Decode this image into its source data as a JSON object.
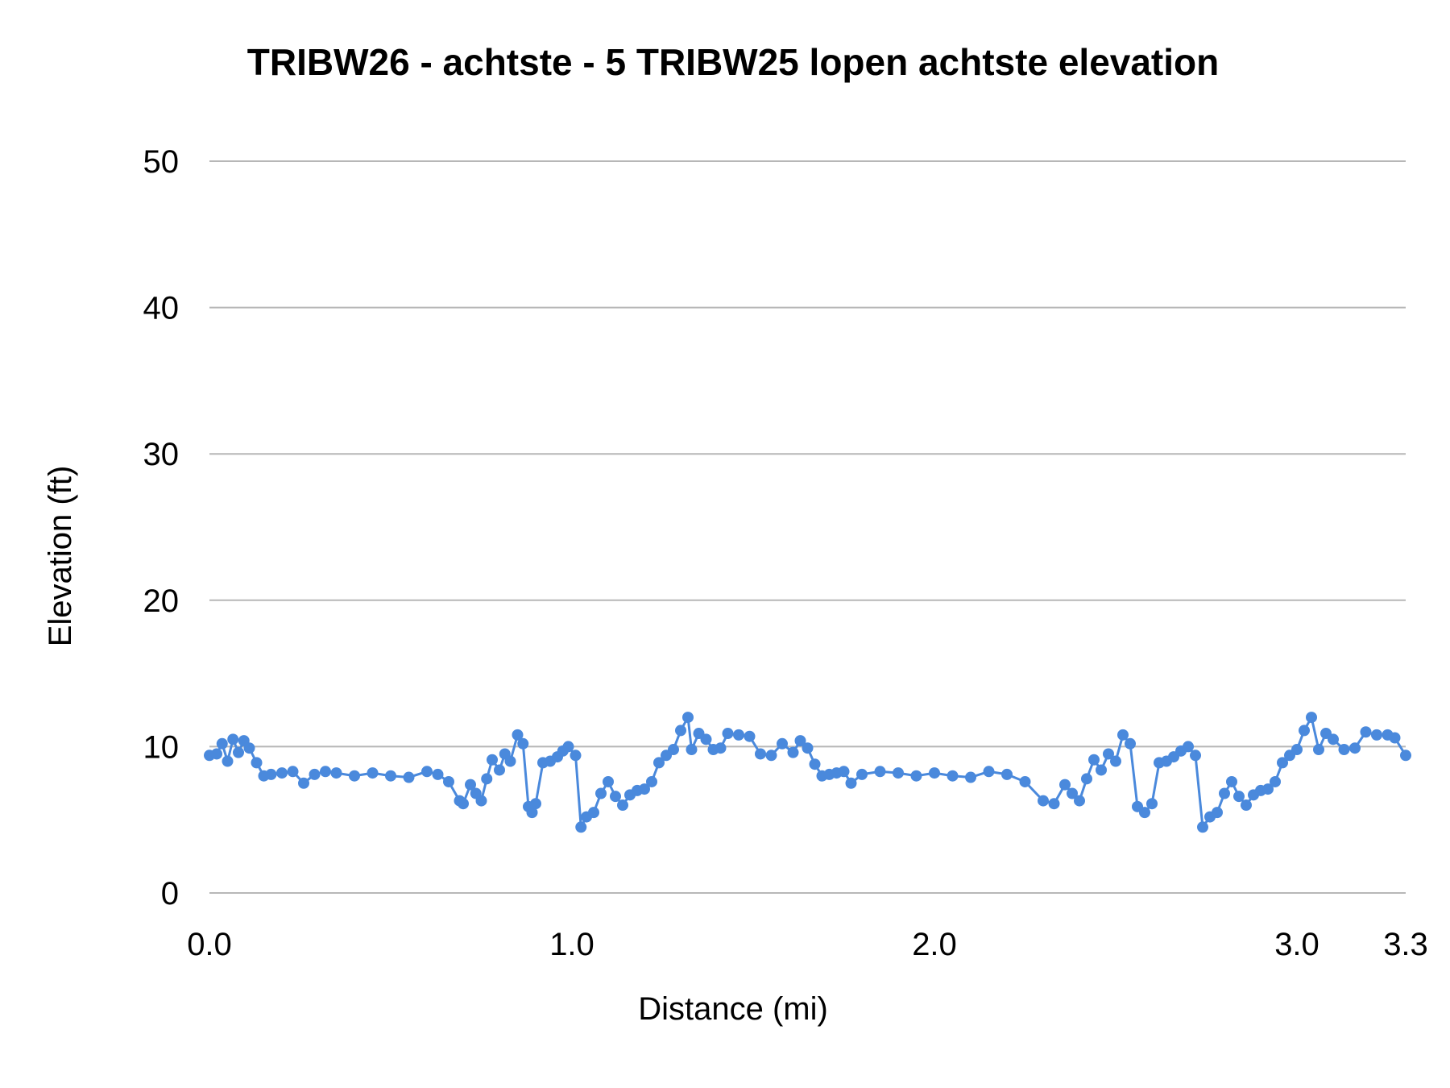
{
  "chart_data": {
    "type": "line",
    "title": "TRIBW26 - achtste - 5 TRIBW25 lopen achtste elevation",
    "xlabel": "Distance (mi)",
    "ylabel": "Elevation (ft)",
    "xlim": [
      0,
      3.3
    ],
    "ylim": [
      0,
      50
    ],
    "x_ticks": [
      0,
      1,
      2,
      3,
      3.3
    ],
    "x_tick_labels": [
      "0.0",
      "1.0",
      "2.0",
      "3.0",
      "3.3"
    ],
    "y_ticks": [
      0,
      10,
      20,
      30,
      40,
      50
    ],
    "y_tick_labels": [
      "0",
      "10",
      "20",
      "30",
      "40",
      "50"
    ],
    "grid": true,
    "legend": "none",
    "series_color": "#4a89dc",
    "series": [
      {
        "x": [
          0,
          0.02,
          0.035,
          0.05,
          0.065,
          0.08,
          0.095,
          0.11,
          0.13,
          0.15,
          0.17,
          0.2,
          0.23,
          0.26,
          0.29,
          0.32,
          0.35,
          0.4,
          0.45,
          0.5,
          0.55,
          0.6,
          0.63,
          0.66,
          0.69,
          0.7,
          0.72,
          0.735,
          0.75,
          0.765,
          0.78,
          0.8,
          0.815,
          0.83,
          0.85,
          0.865,
          0.88,
          0.89,
          0.9,
          0.92,
          0.94,
          0.96,
          0.975,
          0.99,
          1.01,
          1.025,
          1.04,
          1.06,
          1.08,
          1.1,
          1.12,
          1.14,
          1.16,
          1.18,
          1.2,
          1.22,
          1.24,
          1.26,
          1.28,
          1.3,
          1.32,
          1.33,
          1.35,
          1.37,
          1.39,
          1.41,
          1.43,
          1.46,
          1.49,
          1.52,
          1.55,
          1.58,
          1.61,
          1.63,
          1.65,
          1.67,
          1.69,
          1.71,
          1.73,
          1.75,
          1.77,
          1.8,
          1.85,
          1.9,
          1.95,
          2.0,
          2.05,
          2.1,
          2.15,
          2.2,
          2.25,
          2.3,
          2.33,
          2.36,
          2.38,
          2.4,
          2.42,
          2.44,
          2.46,
          2.48,
          2.5,
          2.52,
          2.54,
          2.56,
          2.58,
          2.6,
          2.62,
          2.64,
          2.66,
          2.68,
          2.7,
          2.72,
          2.74,
          2.76,
          2.78,
          2.8,
          2.82,
          2.84,
          2.86,
          2.88,
          2.9,
          2.92,
          2.94,
          2.96,
          2.98,
          3.0,
          3.02,
          3.04,
          3.06,
          3.08,
          3.1,
          3.13,
          3.16,
          3.19,
          3.22,
          3.25,
          3.27,
          3.3
        ],
        "y": [
          9.4,
          9.5,
          10.2,
          9.0,
          10.5,
          9.6,
          10.4,
          9.9,
          8.9,
          8.0,
          8.1,
          8.2,
          8.3,
          7.5,
          8.1,
          8.3,
          8.2,
          8.0,
          8.2,
          8.0,
          7.9,
          8.3,
          8.1,
          7.6,
          6.3,
          6.1,
          7.4,
          6.8,
          6.3,
          7.8,
          9.1,
          8.4,
          9.5,
          9.0,
          10.8,
          10.2,
          5.9,
          5.5,
          6.1,
          8.9,
          9.0,
          9.3,
          9.7,
          10.0,
          9.4,
          4.5,
          5.2,
          5.5,
          6.8,
          7.6,
          6.6,
          6.0,
          6.7,
          7.0,
          7.1,
          7.6,
          8.9,
          9.4,
          9.8,
          11.1,
          12.0,
          9.8,
          10.9,
          10.5,
          9.8,
          9.9,
          10.9,
          10.8,
          10.7,
          9.5,
          9.4,
          10.2,
          9.6,
          10.4,
          9.9,
          8.8,
          8.0,
          8.1,
          8.2,
          8.3,
          7.5,
          8.1,
          8.3,
          8.2,
          8.0,
          8.2,
          8.0,
          7.9,
          8.3,
          8.1,
          7.6,
          6.3,
          6.1,
          7.4,
          6.8,
          6.3,
          7.8,
          9.1,
          8.4,
          9.5,
          9.0,
          10.8,
          10.2,
          5.9,
          5.5,
          6.1,
          8.9,
          9.0,
          9.3,
          9.7,
          10.0,
          9.4,
          4.5,
          5.2,
          5.5,
          6.8,
          7.6,
          6.6,
          6.0,
          6.7,
          7.0,
          7.1,
          7.6,
          8.9,
          9.4,
          9.8,
          11.1,
          12.0,
          9.8,
          10.9,
          10.5,
          9.8,
          9.9,
          11.0,
          10.8,
          10.8,
          10.6,
          9.4
        ]
      }
    ]
  }
}
